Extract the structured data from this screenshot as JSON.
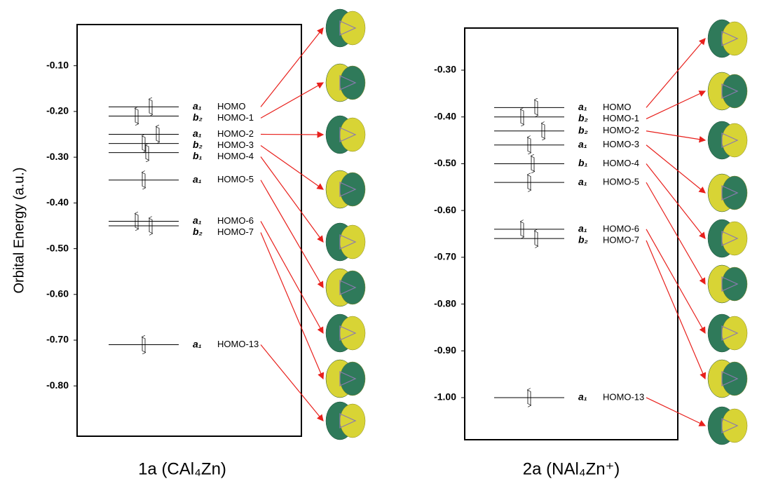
{
  "chart_data": [
    {
      "type": "levels",
      "title": "1a (CAl₄Zn)",
      "y_label": "Orbital Energy (a.u.)",
      "ylim": [
        -0.01,
        -0.91
      ],
      "yticks": [
        {
          "value": -0.1,
          "label": "-0.10"
        },
        {
          "value": -0.2,
          "label": "-0.20"
        },
        {
          "value": -0.3,
          "label": "-0.30"
        },
        {
          "value": -0.4,
          "label": "-0.40"
        },
        {
          "value": -0.5,
          "label": "-0.50"
        },
        {
          "value": -0.6,
          "label": "-0.60"
        },
        {
          "value": -0.7,
          "label": "-0.70"
        },
        {
          "value": -0.8,
          "label": "-0.80"
        }
      ],
      "categories": [
        "HOMO",
        "HOMO-1",
        "HOMO-2",
        "HOMO-3",
        "HOMO-4",
        "HOMO-5",
        "HOMO-6",
        "HOMO-7",
        "HOMO-13"
      ],
      "symmetry": [
        "a₁",
        "b₂",
        "a₁",
        "b₂",
        "b₁",
        "a₁",
        "a₁",
        "b₂",
        "a₁"
      ],
      "values": [
        -0.19,
        -0.21,
        -0.25,
        -0.27,
        -0.29,
        -0.35,
        -0.44,
        -0.45,
        -0.71
      ]
    },
    {
      "type": "levels",
      "title": "2a (NAl₄Zn⁺)",
      "ylim": [
        -0.21,
        -1.09
      ],
      "yticks": [
        {
          "value": -0.3,
          "label": "-0.30"
        },
        {
          "value": -0.4,
          "label": "-0.40"
        },
        {
          "value": -0.5,
          "label": "-0.50"
        },
        {
          "value": -0.6,
          "label": "-0.60"
        },
        {
          "value": -0.7,
          "label": "-0.70"
        },
        {
          "value": -0.8,
          "label": "-0.80"
        },
        {
          "value": -0.9,
          "label": "-0.90"
        },
        {
          "value": -1.0,
          "label": "-1.00"
        }
      ],
      "categories": [
        "HOMO",
        "HOMO-1",
        "HOMO-2",
        "HOMO-3",
        "HOMO-4",
        "HOMO-5",
        "HOMO-6",
        "HOMO-7",
        "HOMO-13"
      ],
      "symmetry": [
        "a₁",
        "b₂",
        "b₂",
        "a₁",
        "b₁",
        "a₁",
        "a₁",
        "b₂",
        "a₁"
      ],
      "values": [
        -0.38,
        -0.4,
        -0.43,
        -0.46,
        -0.5,
        -0.54,
        -0.64,
        -0.66,
        -1.0
      ]
    }
  ]
}
